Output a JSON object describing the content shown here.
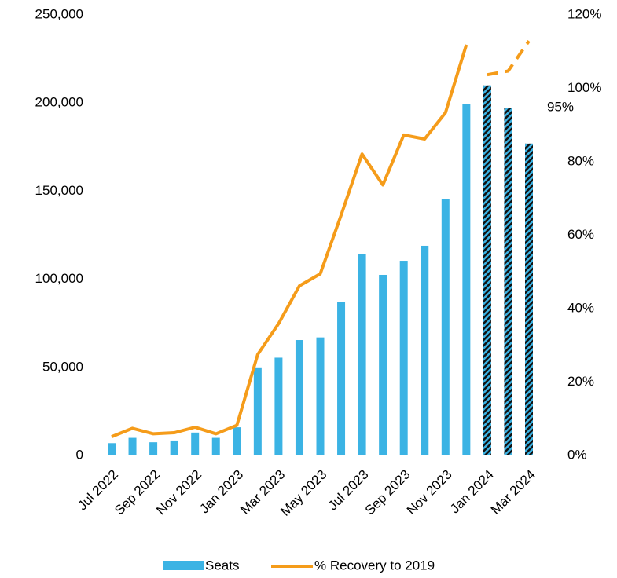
{
  "chart_data": {
    "type": "bar",
    "categories": [
      "Jul 2022",
      null,
      "Sep 2022",
      null,
      "Nov 2022",
      null,
      "Jan 2023",
      null,
      "Mar 2023",
      null,
      "May 2023",
      null,
      "Jul 2023",
      null,
      "Sep 2023",
      null,
      "Nov 2023",
      null,
      "Jan 2024",
      null,
      "Mar 2024"
    ],
    "series": [
      {
        "name": "Seats",
        "color": "#3bb3e4",
        "values": [
          7000,
          10000,
          7500,
          8500,
          13000,
          10000,
          16000,
          50000,
          55500,
          65500,
          67000,
          87000,
          114500,
          102500,
          110500,
          119000,
          145500,
          199500,
          210000,
          197000,
          177000
        ]
      },
      {
        "name": "% Recovery to 2019",
        "color": "#f59c1a",
        "axis": "y2",
        "values": [
          5.1,
          7.4,
          5.9,
          6.2,
          7.7,
          5.9,
          8.2,
          27.5,
          35.9,
          46.2,
          49.5,
          65.5,
          82.1,
          73.7,
          87.3,
          86.2,
          93.4,
          111.9,
          103.7,
          104.7,
          112.9
        ]
      }
    ],
    "forecast_from": 18,
    "ylim": [
      0,
      250000
    ],
    "yticks": [
      0,
      {
        "value": 50000,
        "label": "50,000"
      },
      {
        "value": 100000,
        "label": "100,000"
      },
      {
        "value": 150000,
        "label": "150,000"
      },
      {
        "value": 200000,
        "label": "200,000"
      },
      {
        "value": 250000,
        "label": "250,000"
      }
    ],
    "y2lim": [
      0,
      120
    ],
    "y2ticks": [
      {
        "value": 0,
        "label": "0%"
      },
      {
        "value": 20,
        "label": "20%"
      },
      {
        "value": 40,
        "label": "40%"
      },
      {
        "value": 60,
        "label": "60%"
      },
      {
        "value": 80,
        "label": "80%"
      },
      {
        "value": 100,
        "label": "100%"
      },
      {
        "value": 120,
        "label": "120%"
      }
    ],
    "annotation": "95%",
    "legend": "bottom"
  }
}
